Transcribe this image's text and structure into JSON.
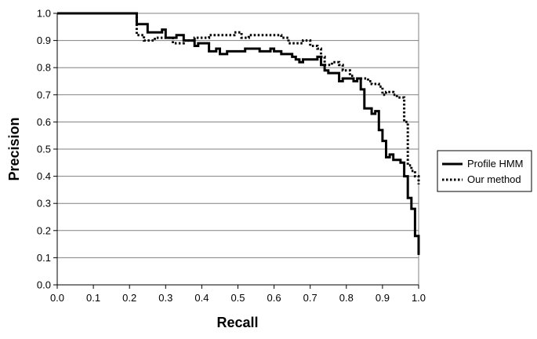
{
  "chart_data": {
    "type": "line",
    "xlabel": "Recall",
    "ylabel": "Precision",
    "xlim": [
      0,
      1
    ],
    "ylim": [
      0,
      1
    ],
    "x_ticks": [
      "0.0",
      "0.1",
      "0.2",
      "0.3",
      "0.4",
      "0.5",
      "0.6",
      "0.7",
      "0.8",
      "0.9",
      "1.0"
    ],
    "y_ticks": [
      "0.0",
      "0.1",
      "0.2",
      "0.3",
      "0.4",
      "0.5",
      "0.6",
      "0.7",
      "0.8",
      "0.9",
      "1.0"
    ],
    "grid": "horizontal",
    "legend_position": "right",
    "series": [
      {
        "name": "Profile HMM",
        "style": "solid",
        "color": "#000000",
        "points": [
          [
            0.0,
            1.0
          ],
          [
            0.22,
            1.0
          ],
          [
            0.22,
            0.96
          ],
          [
            0.25,
            0.96
          ],
          [
            0.25,
            0.93
          ],
          [
            0.29,
            0.93
          ],
          [
            0.29,
            0.94
          ],
          [
            0.3,
            0.94
          ],
          [
            0.3,
            0.91
          ],
          [
            0.33,
            0.91
          ],
          [
            0.33,
            0.92
          ],
          [
            0.35,
            0.92
          ],
          [
            0.35,
            0.9
          ],
          [
            0.38,
            0.9
          ],
          [
            0.38,
            0.88
          ],
          [
            0.39,
            0.88
          ],
          [
            0.39,
            0.89
          ],
          [
            0.42,
            0.89
          ],
          [
            0.42,
            0.86
          ],
          [
            0.44,
            0.86
          ],
          [
            0.44,
            0.87
          ],
          [
            0.45,
            0.87
          ],
          [
            0.45,
            0.85
          ],
          [
            0.47,
            0.85
          ],
          [
            0.47,
            0.86
          ],
          [
            0.52,
            0.86
          ],
          [
            0.52,
            0.87
          ],
          [
            0.56,
            0.87
          ],
          [
            0.56,
            0.86
          ],
          [
            0.59,
            0.86
          ],
          [
            0.59,
            0.87
          ],
          [
            0.6,
            0.87
          ],
          [
            0.6,
            0.86
          ],
          [
            0.62,
            0.86
          ],
          [
            0.62,
            0.85
          ],
          [
            0.65,
            0.85
          ],
          [
            0.65,
            0.84
          ],
          [
            0.66,
            0.84
          ],
          [
            0.66,
            0.83
          ],
          [
            0.67,
            0.83
          ],
          [
            0.67,
            0.82
          ],
          [
            0.68,
            0.82
          ],
          [
            0.68,
            0.83
          ],
          [
            0.72,
            0.83
          ],
          [
            0.72,
            0.84
          ],
          [
            0.73,
            0.84
          ],
          [
            0.73,
            0.81
          ],
          [
            0.74,
            0.81
          ],
          [
            0.74,
            0.79
          ],
          [
            0.75,
            0.79
          ],
          [
            0.75,
            0.78
          ],
          [
            0.78,
            0.78
          ],
          [
            0.78,
            0.75
          ],
          [
            0.79,
            0.75
          ],
          [
            0.79,
            0.76
          ],
          [
            0.82,
            0.76
          ],
          [
            0.82,
            0.75
          ],
          [
            0.83,
            0.75
          ],
          [
            0.83,
            0.76
          ],
          [
            0.84,
            0.76
          ],
          [
            0.84,
            0.72
          ],
          [
            0.85,
            0.72
          ],
          [
            0.85,
            0.65
          ],
          [
            0.87,
            0.65
          ],
          [
            0.87,
            0.63
          ],
          [
            0.88,
            0.63
          ],
          [
            0.88,
            0.64
          ],
          [
            0.89,
            0.64
          ],
          [
            0.89,
            0.57
          ],
          [
            0.9,
            0.57
          ],
          [
            0.9,
            0.53
          ],
          [
            0.91,
            0.53
          ],
          [
            0.91,
            0.47
          ],
          [
            0.92,
            0.47
          ],
          [
            0.92,
            0.48
          ],
          [
            0.93,
            0.48
          ],
          [
            0.93,
            0.46
          ],
          [
            0.95,
            0.46
          ],
          [
            0.95,
            0.45
          ],
          [
            0.96,
            0.45
          ],
          [
            0.96,
            0.4
          ],
          [
            0.97,
            0.4
          ],
          [
            0.97,
            0.32
          ],
          [
            0.98,
            0.32
          ],
          [
            0.98,
            0.28
          ],
          [
            0.99,
            0.28
          ],
          [
            0.99,
            0.18
          ],
          [
            1.0,
            0.18
          ],
          [
            1.0,
            0.11
          ]
        ]
      },
      {
        "name": "Our method",
        "style": "dotted",
        "color": "#000000",
        "points": [
          [
            0.0,
            1.0
          ],
          [
            0.22,
            1.0
          ],
          [
            0.22,
            0.92
          ],
          [
            0.24,
            0.92
          ],
          [
            0.24,
            0.9
          ],
          [
            0.27,
            0.9
          ],
          [
            0.27,
            0.91
          ],
          [
            0.32,
            0.91
          ],
          [
            0.32,
            0.89
          ],
          [
            0.35,
            0.89
          ],
          [
            0.35,
            0.9
          ],
          [
            0.38,
            0.9
          ],
          [
            0.38,
            0.91
          ],
          [
            0.42,
            0.91
          ],
          [
            0.42,
            0.92
          ],
          [
            0.49,
            0.92
          ],
          [
            0.49,
            0.93
          ],
          [
            0.51,
            0.93
          ],
          [
            0.51,
            0.91
          ],
          [
            0.53,
            0.91
          ],
          [
            0.53,
            0.92
          ],
          [
            0.62,
            0.92
          ],
          [
            0.62,
            0.91
          ],
          [
            0.64,
            0.91
          ],
          [
            0.64,
            0.89
          ],
          [
            0.68,
            0.89
          ],
          [
            0.68,
            0.9
          ],
          [
            0.7,
            0.9
          ],
          [
            0.7,
            0.88
          ],
          [
            0.72,
            0.88
          ],
          [
            0.72,
            0.87
          ],
          [
            0.73,
            0.87
          ],
          [
            0.73,
            0.84
          ],
          [
            0.74,
            0.84
          ],
          [
            0.74,
            0.81
          ],
          [
            0.76,
            0.81
          ],
          [
            0.76,
            0.82
          ],
          [
            0.78,
            0.82
          ],
          [
            0.78,
            0.81
          ],
          [
            0.79,
            0.81
          ],
          [
            0.79,
            0.79
          ],
          [
            0.81,
            0.79
          ],
          [
            0.81,
            0.77
          ],
          [
            0.82,
            0.77
          ],
          [
            0.82,
            0.76
          ],
          [
            0.86,
            0.76
          ],
          [
            0.86,
            0.75
          ],
          [
            0.87,
            0.75
          ],
          [
            0.87,
            0.74
          ],
          [
            0.89,
            0.74
          ],
          [
            0.89,
            0.73
          ],
          [
            0.9,
            0.73
          ],
          [
            0.9,
            0.7
          ],
          [
            0.91,
            0.7
          ],
          [
            0.91,
            0.71
          ],
          [
            0.93,
            0.71
          ],
          [
            0.93,
            0.7
          ],
          [
            0.94,
            0.7
          ],
          [
            0.94,
            0.69
          ],
          [
            0.96,
            0.69
          ],
          [
            0.96,
            0.6
          ],
          [
            0.97,
            0.6
          ],
          [
            0.97,
            0.44
          ],
          [
            0.98,
            0.44
          ],
          [
            0.98,
            0.42
          ],
          [
            0.99,
            0.42
          ],
          [
            0.99,
            0.4
          ],
          [
            1.0,
            0.4
          ],
          [
            1.0,
            0.37
          ]
        ]
      }
    ]
  }
}
